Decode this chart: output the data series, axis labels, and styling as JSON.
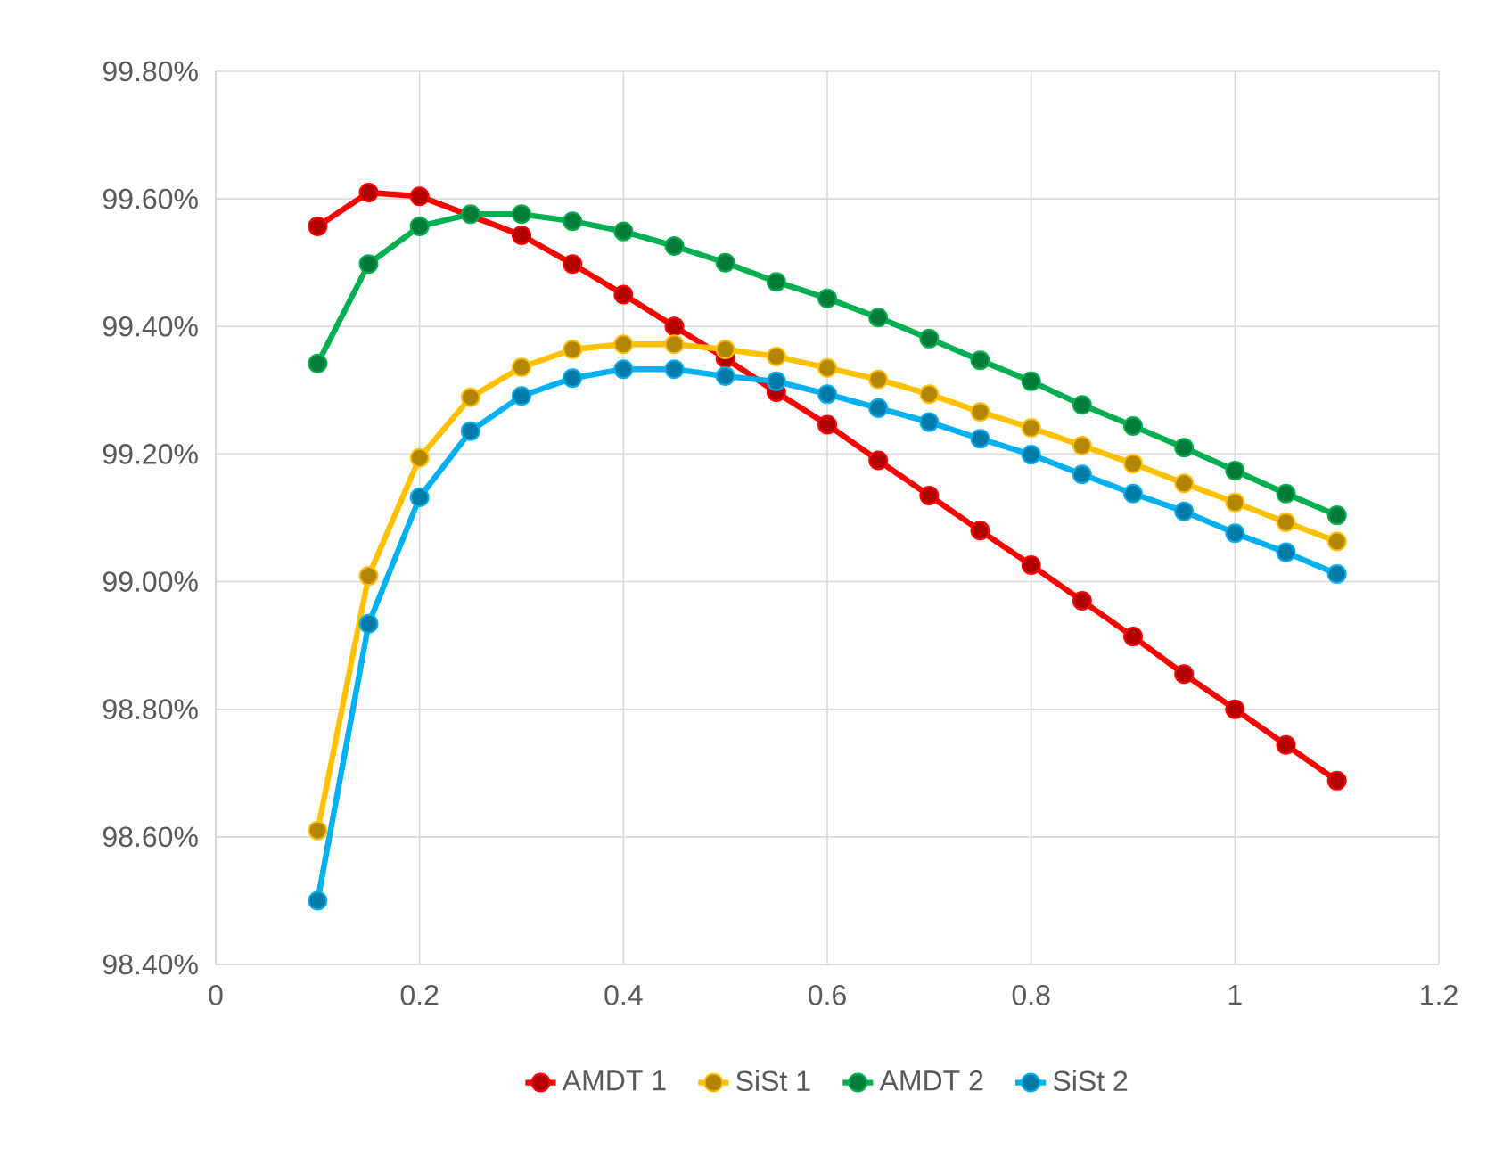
{
  "chart_data": {
    "type": "line",
    "x": [
      0.1,
      0.15,
      0.2,
      0.25,
      0.3,
      0.35,
      0.4,
      0.45,
      0.5,
      0.55,
      0.6,
      0.65,
      0.7,
      0.75,
      0.8,
      0.85,
      0.9,
      0.95,
      1.0,
      1.05,
      1.1
    ],
    "series": [
      {
        "name": "AMDT 1",
        "color": "#ff0000",
        "values": [
          99.557,
          99.61,
          99.604,
          null,
          99.543,
          99.498,
          99.45,
          99.4,
          99.35,
          99.297,
          99.246,
          99.19,
          99.135,
          99.08,
          99.026,
          98.97,
          98.914,
          98.855,
          98.8,
          98.744,
          98.688
        ]
      },
      {
        "name": "SiSt 1",
        "color": "#ffc000",
        "values": [
          98.61,
          99.009,
          99.194,
          99.289,
          99.336,
          99.364,
          99.372,
          99.372,
          99.364,
          99.353,
          99.335,
          99.317,
          99.294,
          99.266,
          99.241,
          99.213,
          99.185,
          99.154,
          99.124,
          99.093,
          99.063
        ]
      },
      {
        "name": "AMDT 2",
        "color": "#00b050",
        "values": [
          99.342,
          99.498,
          99.557,
          99.576,
          99.576,
          99.565,
          99.549,
          99.526,
          99.5,
          99.47,
          99.444,
          99.414,
          99.381,
          99.347,
          99.314,
          99.277,
          99.244,
          99.21,
          99.174,
          99.138,
          99.104
        ]
      },
      {
        "name": "SiSt 2",
        "color": "#00b0f0",
        "values": [
          98.5,
          98.934,
          99.132,
          99.236,
          99.291,
          99.319,
          99.333,
          99.333,
          99.322,
          99.314,
          99.294,
          99.272,
          99.25,
          99.224,
          99.199,
          99.168,
          99.138,
          99.11,
          99.076,
          99.046,
          99.012
        ]
      }
    ],
    "xlim": [
      0,
      1.2
    ],
    "xticks": [
      0,
      0.2,
      0.4,
      0.6,
      0.8,
      1,
      1.2
    ],
    "ylim": [
      98.4,
      99.8
    ],
    "yticks": [
      {
        "value": 98.4,
        "label": "98.40%"
      },
      {
        "value": 98.6,
        "label": "98.60%"
      },
      {
        "value": 98.8,
        "label": "98.80%"
      },
      {
        "value": 99.0,
        "label": "99.00%"
      },
      {
        "value": 99.2,
        "label": "99.20%"
      },
      {
        "value": 99.4,
        "label": "99.40%"
      },
      {
        "value": 99.6,
        "label": "99.60%"
      },
      {
        "value": 99.8,
        "label": "99.80%"
      }
    ],
    "grid": true,
    "legend": "bottom",
    "marker": "circle",
    "line_style": "solid"
  }
}
